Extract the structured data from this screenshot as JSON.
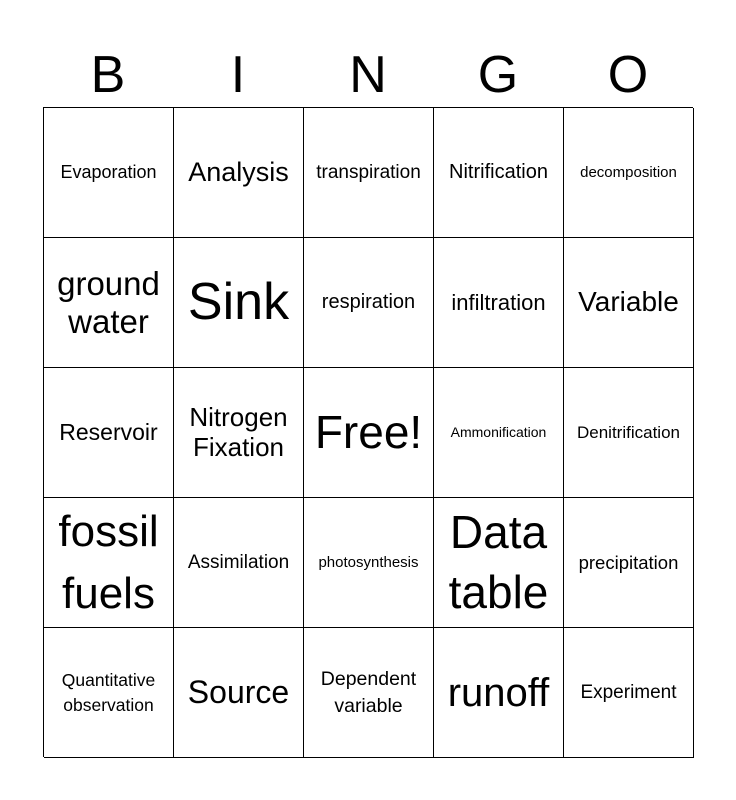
{
  "header": [
    "B",
    "I",
    "N",
    "G",
    "O"
  ],
  "cells": [
    "Evaporation",
    "Analysis",
    "transpiration",
    "Nitrification",
    "decomposition",
    "ground water",
    "Sink",
    "respiration",
    "infiltration",
    "Variable",
    "Reservoir",
    "Nitrogen Fixation",
    "Free!",
    "Ammonification",
    "Denitrification",
    "fossil fuels",
    "Assimilation",
    "photosynthesis",
    "Data table",
    "precipitation",
    "Quantitative observation",
    "Source",
    "Dependent variable",
    "runoff",
    "Experiment"
  ]
}
